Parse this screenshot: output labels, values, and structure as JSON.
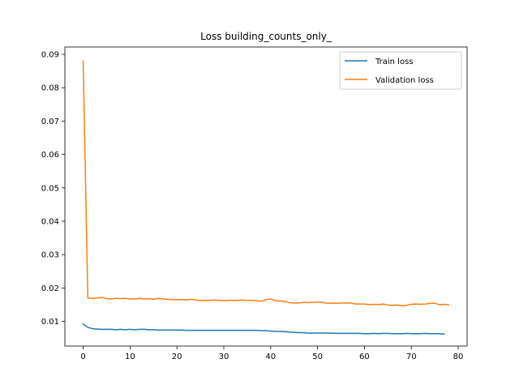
{
  "chart_data": {
    "type": "line",
    "title": "Loss building_counts_only_",
    "xlabel": "",
    "ylabel": "",
    "xlim": [
      -3.9,
      81.9
    ],
    "ylim": [
      0.0026,
      0.0922
    ],
    "x_ticks": [
      0,
      10,
      20,
      30,
      40,
      50,
      60,
      70,
      80
    ],
    "y_ticks": [
      0.01,
      0.02,
      0.03,
      0.04,
      0.05,
      0.06,
      0.07,
      0.08,
      0.09
    ],
    "y_tick_labels": [
      "0.01",
      "0.02",
      "0.03",
      "0.04",
      "0.05",
      "0.06",
      "0.07",
      "0.08",
      "0.09"
    ],
    "grid": false,
    "legend_position": "top-right",
    "series": [
      {
        "name": "Train loss",
        "color": "#1f77b4",
        "x": [
          0,
          1,
          2,
          3,
          4,
          5,
          6,
          7,
          8,
          9,
          10,
          11,
          12,
          13,
          14,
          15,
          16,
          17,
          18,
          19,
          20,
          21,
          22,
          23,
          24,
          25,
          26,
          27,
          28,
          29,
          30,
          31,
          32,
          33,
          34,
          35,
          36,
          37,
          38,
          39,
          40,
          41,
          42,
          43,
          44,
          45,
          46,
          47,
          48,
          49,
          50,
          51,
          52,
          53,
          54,
          55,
          56,
          57,
          58,
          59,
          60,
          61,
          62,
          63,
          64,
          65,
          66,
          67,
          68,
          69,
          70,
          71,
          72,
          73,
          74,
          75,
          76,
          77
        ],
        "values": [
          0.0092,
          0.0082,
          0.0078,
          0.0077,
          0.0076,
          0.0076,
          0.0076,
          0.0075,
          0.0076,
          0.0075,
          0.0076,
          0.0075,
          0.0076,
          0.0076,
          0.0075,
          0.0075,
          0.0074,
          0.0074,
          0.0074,
          0.0074,
          0.0074,
          0.0074,
          0.0073,
          0.0073,
          0.0073,
          0.0073,
          0.0073,
          0.0073,
          0.0073,
          0.0073,
          0.0073,
          0.0073,
          0.0073,
          0.0073,
          0.0073,
          0.0073,
          0.0073,
          0.0073,
          0.0072,
          0.0072,
          0.0071,
          0.007,
          0.007,
          0.0069,
          0.0068,
          0.0067,
          0.0066,
          0.0066,
          0.0065,
          0.0065,
          0.0065,
          0.0065,
          0.0065,
          0.0065,
          0.0064,
          0.0064,
          0.0064,
          0.0064,
          0.0064,
          0.0064,
          0.0063,
          0.0063,
          0.0064,
          0.0063,
          0.0064,
          0.0064,
          0.0063,
          0.0063,
          0.0063,
          0.0064,
          0.0063,
          0.0063,
          0.0063,
          0.0064,
          0.0063,
          0.0063,
          0.0063,
          0.0062
        ]
      },
      {
        "name": "Validation loss",
        "color": "#ff7f0e",
        "x": [
          0,
          1,
          2,
          3,
          4,
          5,
          6,
          7,
          8,
          9,
          10,
          11,
          12,
          13,
          14,
          15,
          16,
          17,
          18,
          19,
          20,
          21,
          22,
          23,
          24,
          25,
          26,
          27,
          28,
          29,
          30,
          31,
          32,
          33,
          34,
          35,
          36,
          37,
          38,
          39,
          40,
          41,
          42,
          43,
          44,
          45,
          46,
          47,
          48,
          49,
          50,
          51,
          52,
          53,
          54,
          55,
          56,
          57,
          58,
          59,
          60,
          61,
          62,
          63,
          64,
          65,
          66,
          67,
          68,
          69,
          70,
          71,
          72,
          73,
          74,
          75,
          76,
          77,
          78
        ],
        "values": [
          0.088,
          0.017,
          0.0169,
          0.017,
          0.0172,
          0.0168,
          0.0167,
          0.0169,
          0.0168,
          0.0169,
          0.0167,
          0.0167,
          0.0169,
          0.0167,
          0.0168,
          0.0166,
          0.0169,
          0.0167,
          0.0166,
          0.0165,
          0.0165,
          0.0165,
          0.0164,
          0.0166,
          0.0164,
          0.0162,
          0.0163,
          0.0163,
          0.0164,
          0.0163,
          0.0162,
          0.0163,
          0.0163,
          0.0163,
          0.0164,
          0.0163,
          0.0163,
          0.0162,
          0.016,
          0.0165,
          0.0167,
          0.0162,
          0.0161,
          0.016,
          0.0156,
          0.0155,
          0.0155,
          0.0157,
          0.0156,
          0.0157,
          0.0158,
          0.0157,
          0.0154,
          0.0155,
          0.0154,
          0.0155,
          0.0155,
          0.0155,
          0.0152,
          0.0152,
          0.0152,
          0.015,
          0.0151,
          0.015,
          0.0152,
          0.0149,
          0.0148,
          0.0149,
          0.0147,
          0.0148,
          0.0151,
          0.0152,
          0.0151,
          0.0152,
          0.0154,
          0.0154,
          0.015,
          0.0151,
          0.0149
        ]
      }
    ]
  }
}
